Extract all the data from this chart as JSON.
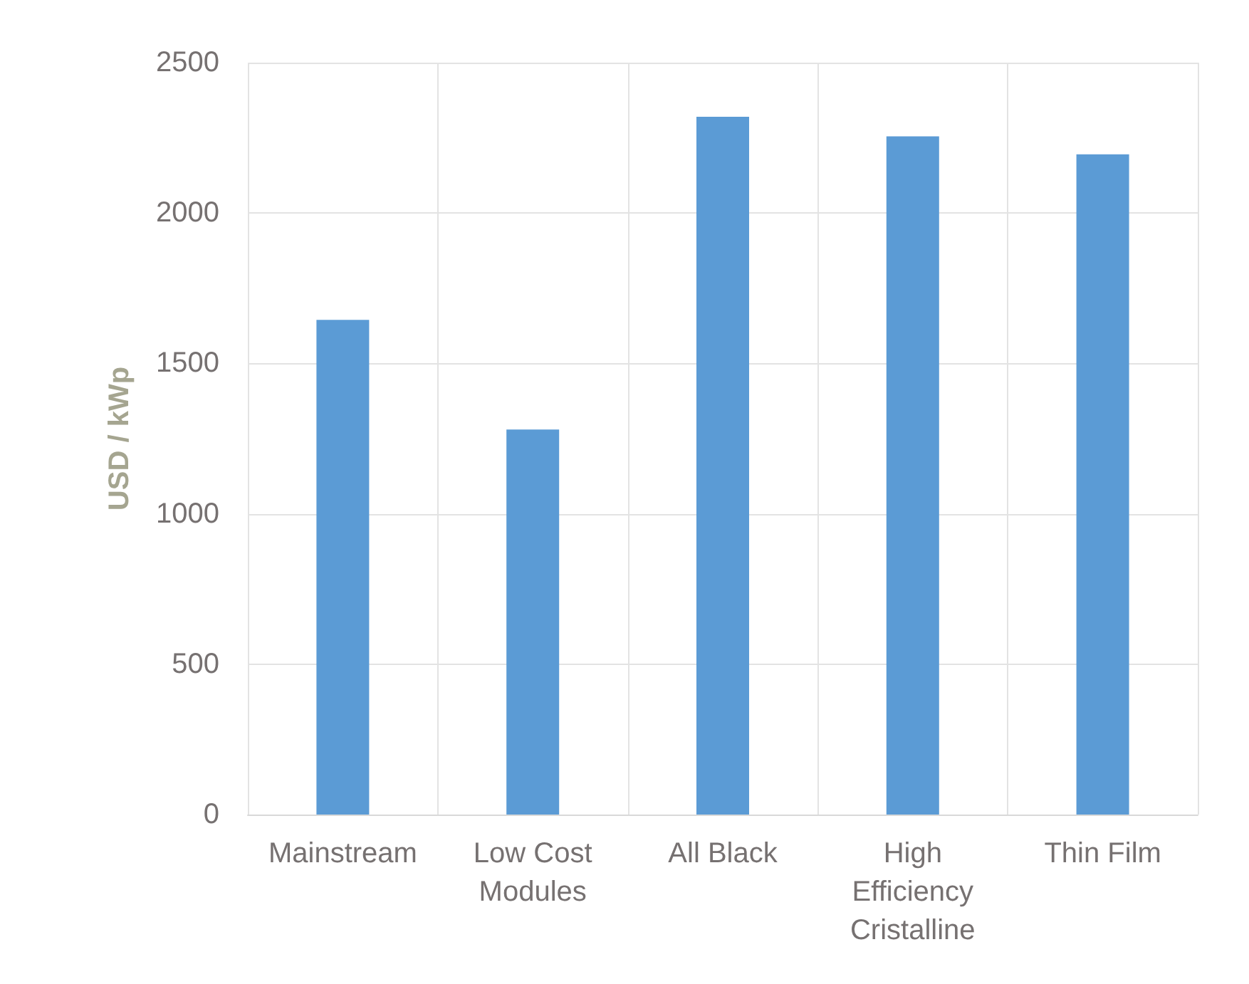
{
  "chart_data": {
    "type": "bar",
    "ylabel": "USD / kWp",
    "categories": [
      "Mainstream",
      "Low Cost\nModules",
      "All Black",
      "High\nEfficiency\nCristalline",
      "Thin Film"
    ],
    "values": [
      1645,
      1280,
      2320,
      2255,
      2195
    ],
    "color": "#5b9bd5",
    "ylim": [
      0,
      2500
    ],
    "yticks": [
      0,
      500,
      1000,
      1500,
      2000,
      2500
    ],
    "grid": true
  }
}
